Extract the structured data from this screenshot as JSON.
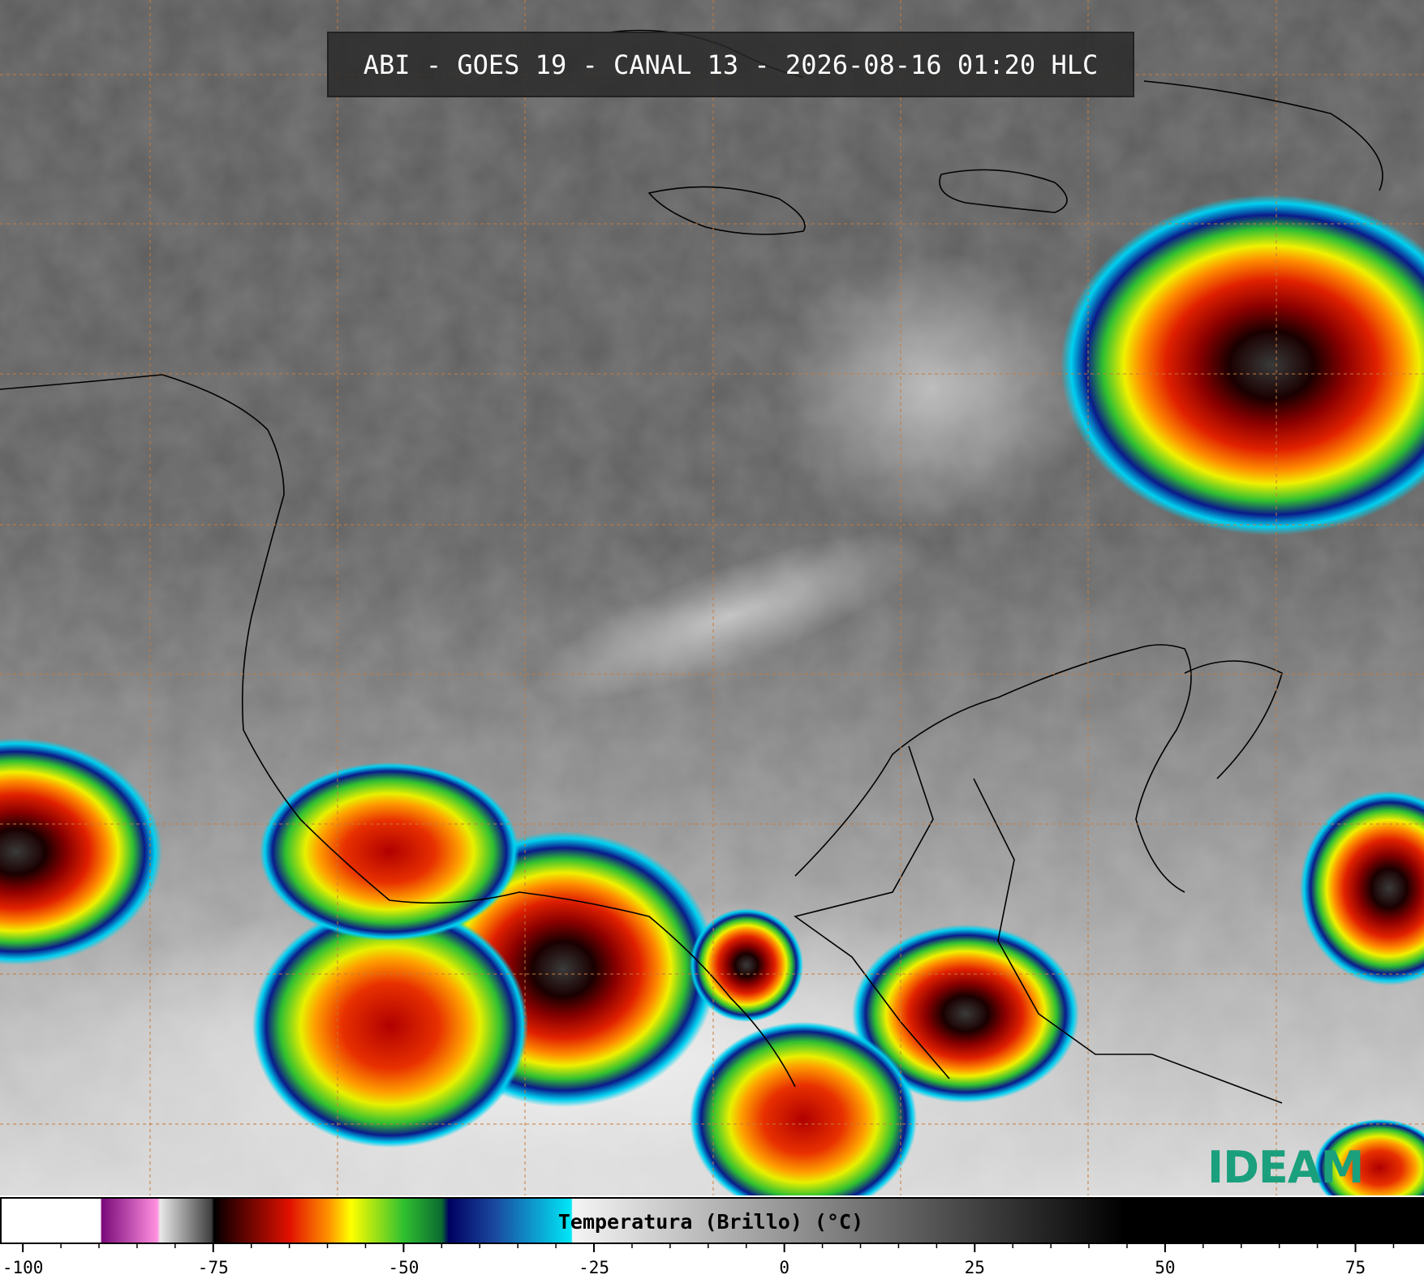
{
  "title": "ABI - GOES 19 - CANAL 13 - 2026-08-16 01:20 HLC",
  "colorbar": {
    "label": "Temperatura (Brillo) (°C)",
    "range": [
      -103,
      84
    ],
    "ticks": [
      -100,
      -75,
      -50,
      -25,
      0,
      25,
      50,
      75
    ],
    "minor_tick_step": 5
  },
  "logo": "IDEAM"
}
